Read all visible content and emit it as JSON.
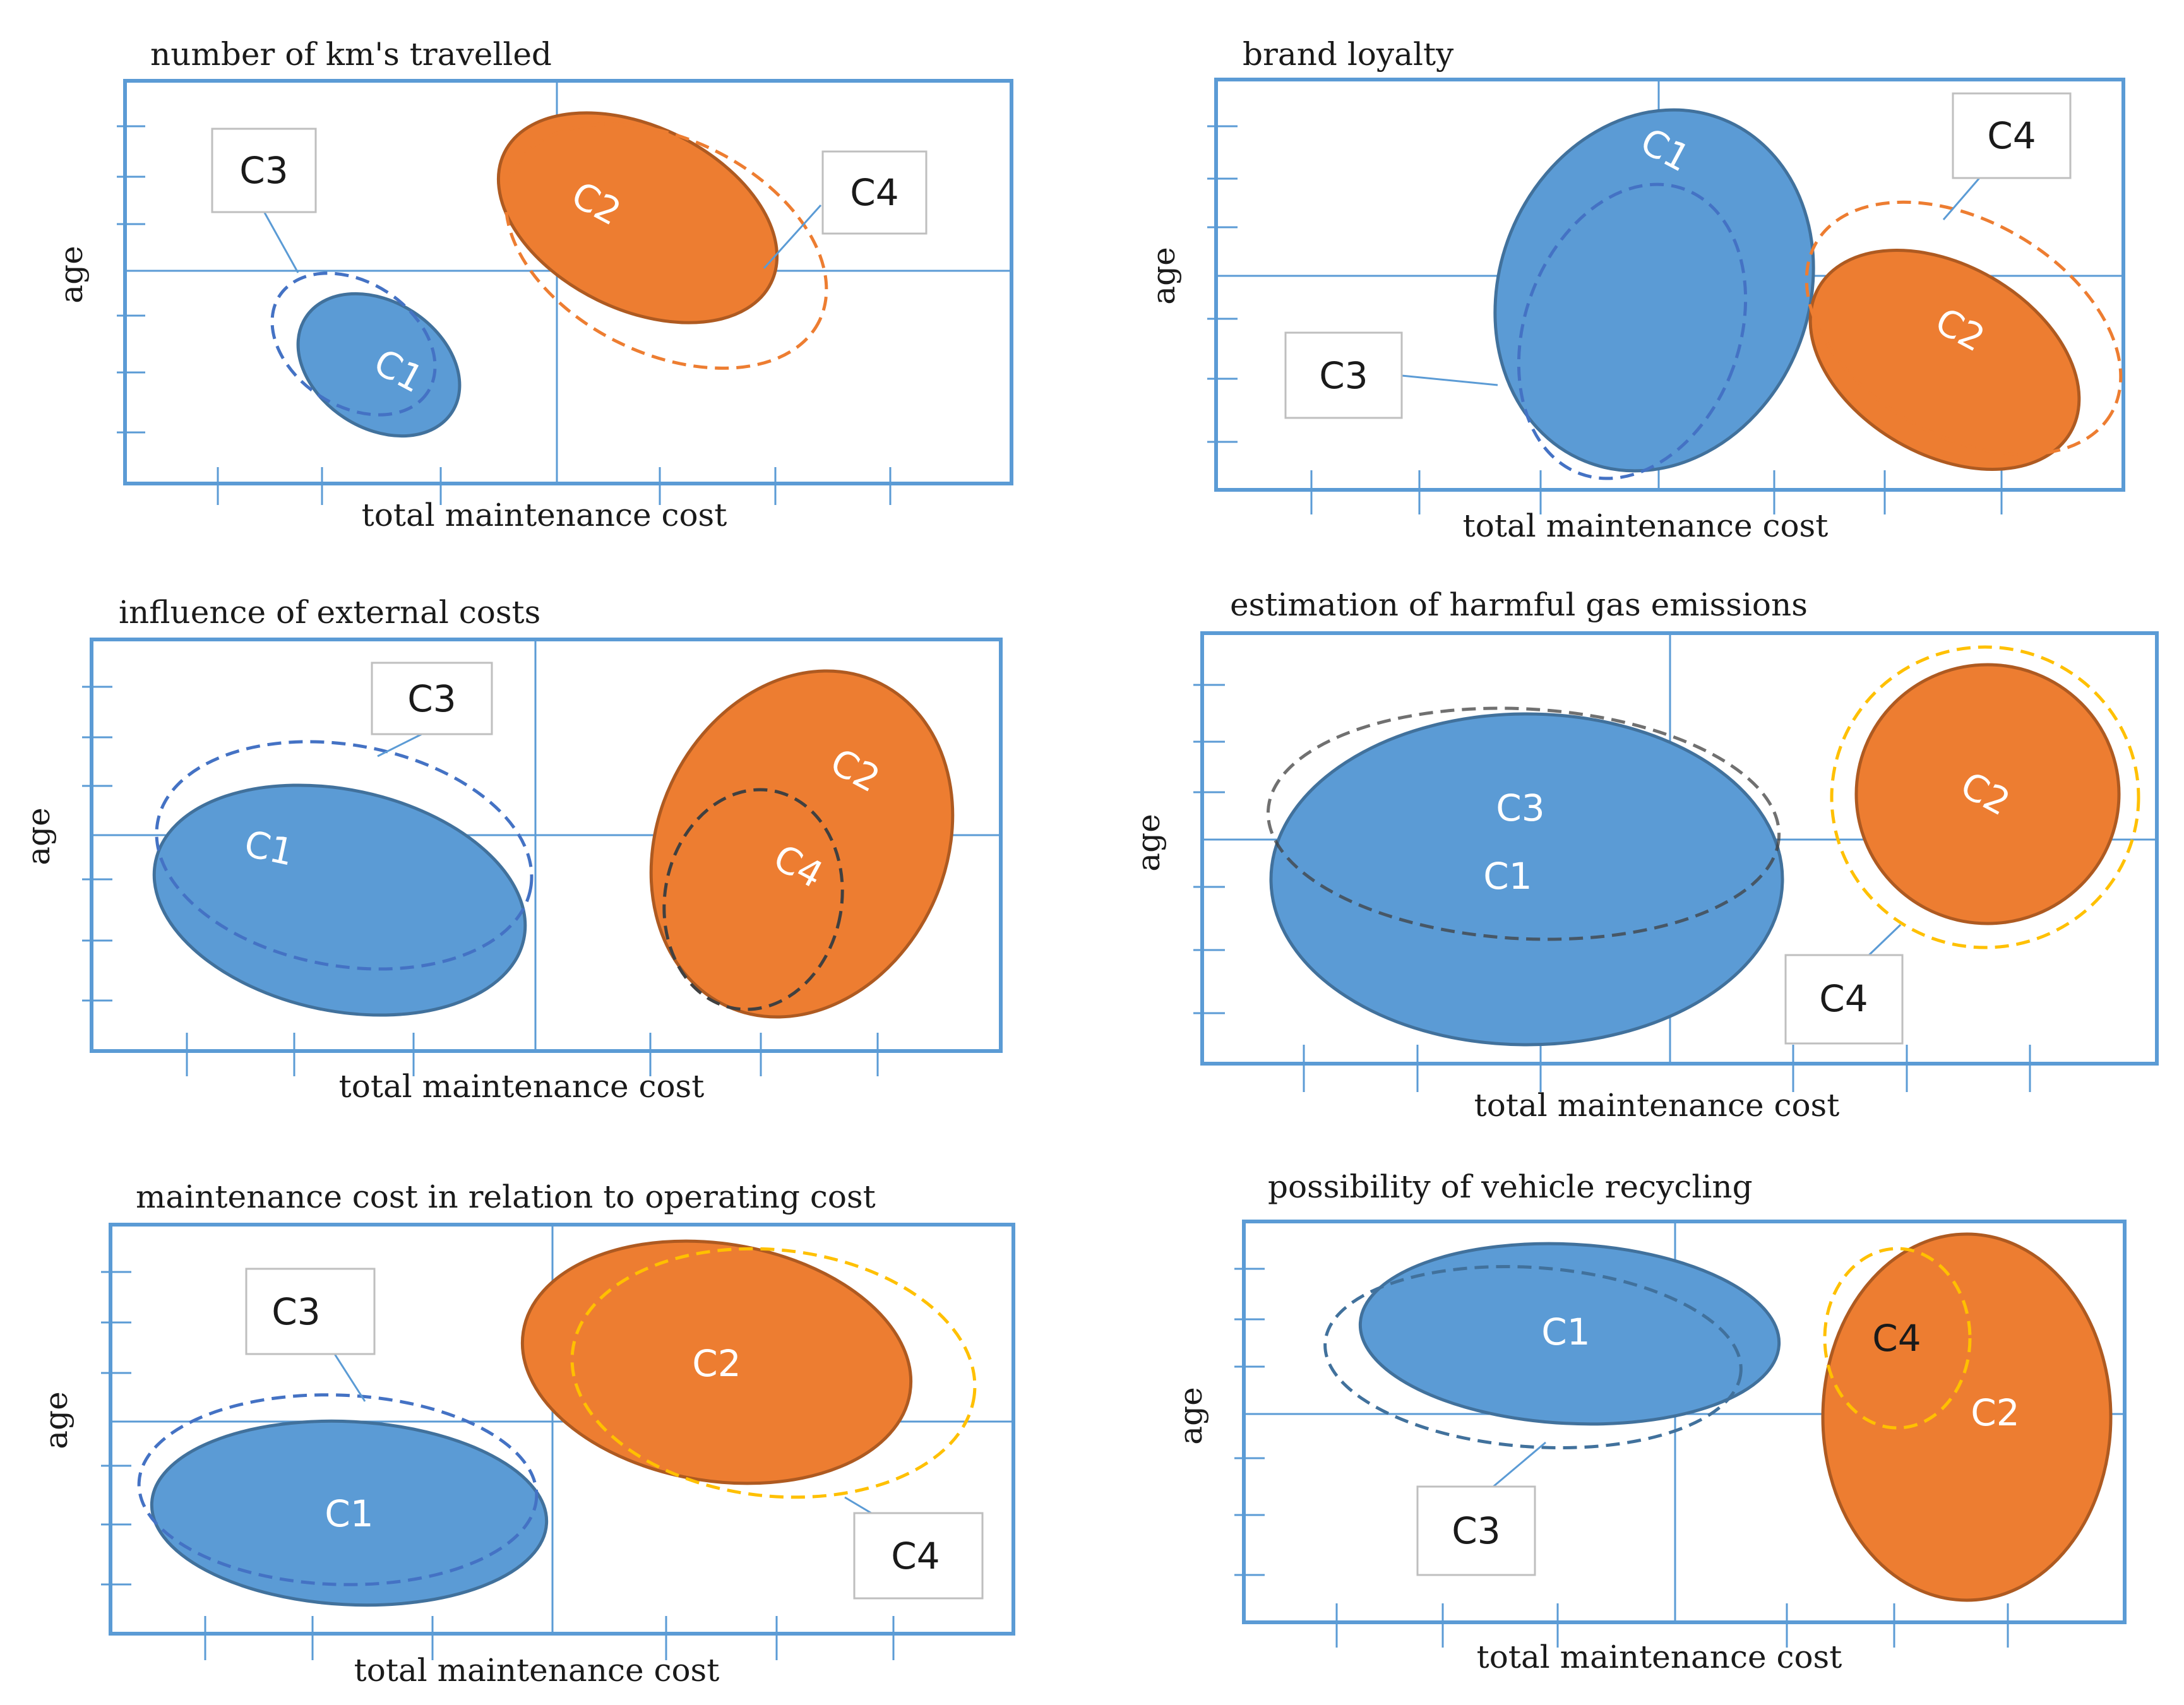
{
  "colors": {
    "frame": "#5b9bd5",
    "blue_fill": "#5b9bd5",
    "blue_stroke": "#41719c",
    "orange_fill": "#ed7d31",
    "orange_stroke": "#ae5a21",
    "dash_blue": "#4472c4",
    "dash_orange": "#ed7d31",
    "dash_yellow": "#ffc000",
    "dash_dark": "#404040",
    "label_white": "#ffffff",
    "label_dark": "#1a1a1a"
  },
  "common": {
    "xlabel": "total maintenance cost",
    "ylabel": "age"
  },
  "panels": [
    {
      "title": "number of km's travelled",
      "clusters": [
        {
          "id": "C1",
          "shape": "solid",
          "color": "blue"
        },
        {
          "id": "C2",
          "shape": "solid",
          "color": "orange"
        },
        {
          "id": "C3",
          "shape": "dashed",
          "color": "blue",
          "callout": "C3"
        },
        {
          "id": "C4",
          "shape": "dashed",
          "color": "orange",
          "callout": "C4"
        }
      ],
      "labels": {
        "c1": "C1",
        "c2": "C2",
        "c3": "C3",
        "c4": "C4"
      }
    },
    {
      "title": "brand loyalty",
      "clusters": [
        {
          "id": "C1",
          "shape": "solid",
          "color": "blue"
        },
        {
          "id": "C2",
          "shape": "solid",
          "color": "orange"
        },
        {
          "id": "C3",
          "shape": "dashed",
          "color": "blue",
          "callout": "C3"
        },
        {
          "id": "C4",
          "shape": "dashed",
          "color": "orange",
          "callout": "C4"
        }
      ],
      "labels": {
        "c1": "C1",
        "c2": "C2",
        "c3": "C3",
        "c4": "C4"
      }
    },
    {
      "title": "influence of external costs",
      "clusters": [
        {
          "id": "C1",
          "shape": "solid",
          "color": "blue"
        },
        {
          "id": "C2",
          "shape": "solid",
          "color": "orange"
        },
        {
          "id": "C3",
          "shape": "dashed",
          "color": "blue",
          "callout": "C3"
        },
        {
          "id": "C4",
          "shape": "dashed",
          "color": "dark"
        }
      ],
      "labels": {
        "c1": "C1",
        "c2": "C2",
        "c3": "C3",
        "c4": "C4"
      }
    },
    {
      "title": "estimation of harmful gas emissions",
      "clusters": [
        {
          "id": "C1",
          "shape": "solid",
          "color": "blue"
        },
        {
          "id": "C2",
          "shape": "solid",
          "color": "orange"
        },
        {
          "id": "C3",
          "shape": "dashed",
          "color": "blue"
        },
        {
          "id": "C4",
          "shape": "dashed",
          "color": "yellow",
          "callout": "C4"
        }
      ],
      "labels": {
        "c1": "C1",
        "c2": "C2",
        "c3": "C3",
        "c4": "C4"
      }
    },
    {
      "title": "maintenance cost in relation to operating cost",
      "clusters": [
        {
          "id": "C1",
          "shape": "solid",
          "color": "blue"
        },
        {
          "id": "C2",
          "shape": "solid",
          "color": "orange"
        },
        {
          "id": "C3",
          "shape": "dashed",
          "color": "blue",
          "callout": "C3"
        },
        {
          "id": "C4",
          "shape": "dashed",
          "color": "yellow",
          "callout": "C4"
        }
      ],
      "labels": {
        "c1": "C1",
        "c2": "C2",
        "c3": "C3",
        "c4": "C4"
      }
    },
    {
      "title": "possibility of vehicle recycling",
      "clusters": [
        {
          "id": "C1",
          "shape": "solid",
          "color": "blue"
        },
        {
          "id": "C2",
          "shape": "solid",
          "color": "orange"
        },
        {
          "id": "C3",
          "shape": "dashed",
          "color": "blue",
          "callout": "C3"
        },
        {
          "id": "C4",
          "shape": "dashed",
          "color": "yellow"
        }
      ],
      "labels": {
        "c1": "C1",
        "c2": "C2",
        "c3": "C3",
        "c4": "C4"
      }
    }
  ]
}
